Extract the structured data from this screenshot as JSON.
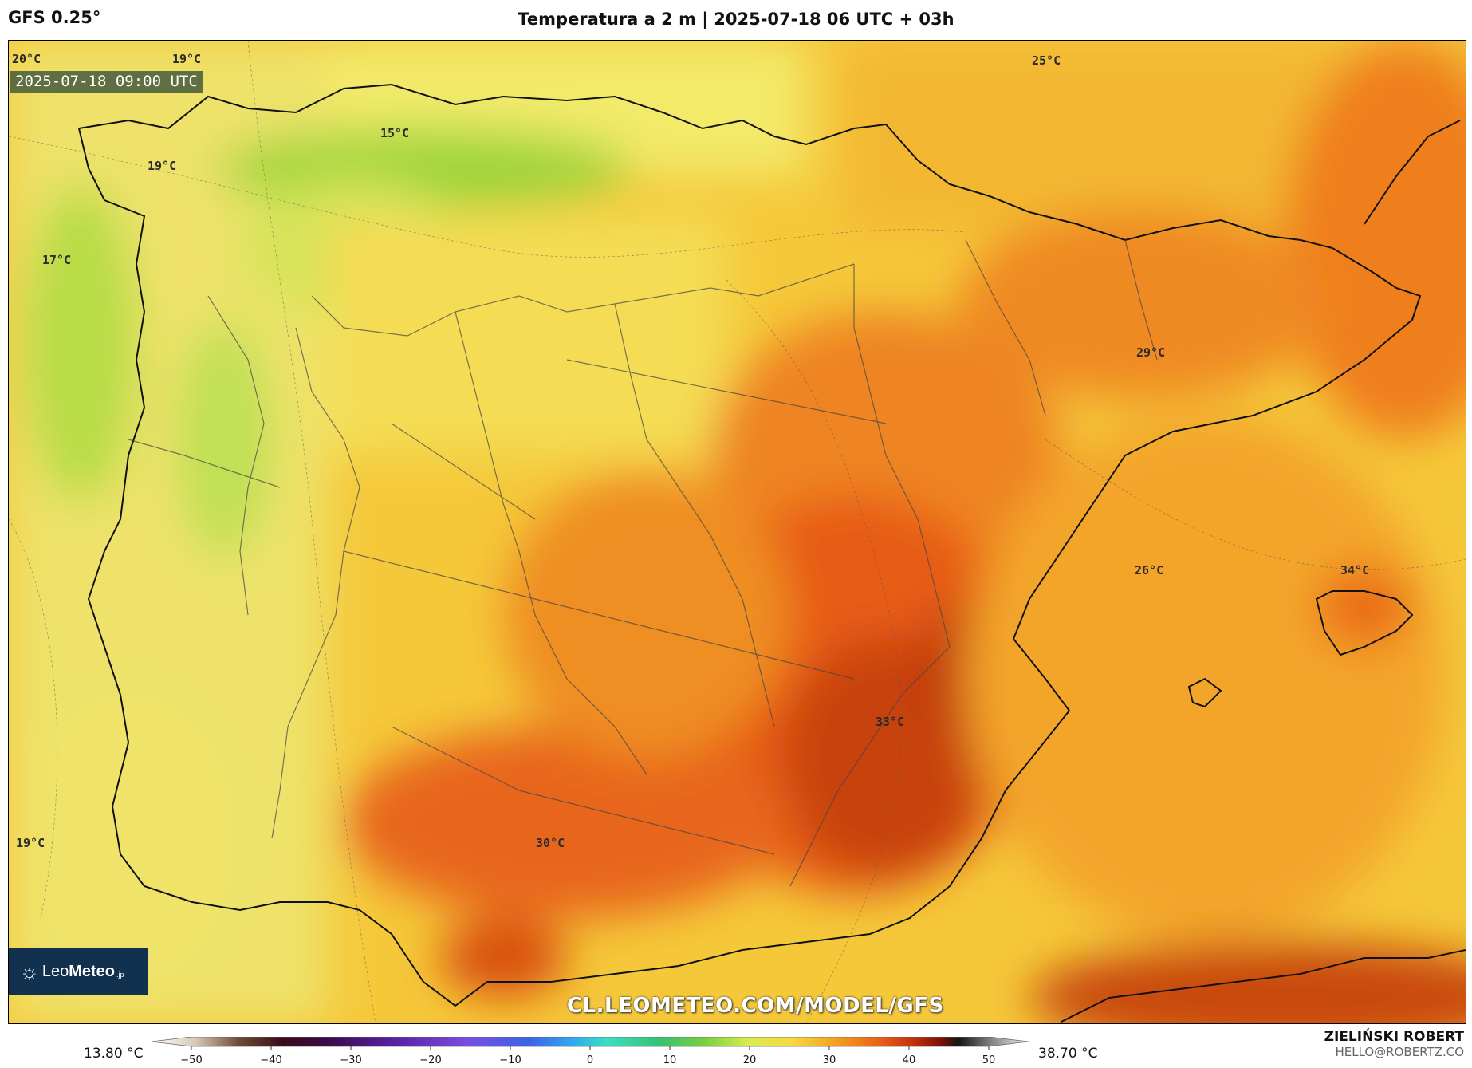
{
  "header": {
    "model": "GFS 0.25°",
    "title": "Temperatura a 2 m | 2025-07-18 06 UTC + 03h"
  },
  "map": {
    "valid_time": "2025-07-18 09:00 UTC",
    "watermark": "CL.LEOMETEO.COM/MODEL/GFS",
    "logo": {
      "text_a": "Leo",
      "text_b": "Meteo",
      "suffix": ".jp"
    },
    "labels": [
      {
        "id": "t20",
        "text": "20°C"
      },
      {
        "id": "t19a",
        "text": "19°C"
      },
      {
        "id": "t19b",
        "text": "19°C"
      },
      {
        "id": "t17",
        "text": "17°C"
      },
      {
        "id": "t15",
        "text": "15°C"
      },
      {
        "id": "t25",
        "text": "25°C"
      },
      {
        "id": "t29",
        "text": "29°C"
      },
      {
        "id": "t26",
        "text": "26°C"
      },
      {
        "id": "t34",
        "text": "34°C"
      },
      {
        "id": "t33",
        "text": "33°C"
      },
      {
        "id": "t30",
        "text": "30°C"
      },
      {
        "id": "t19c",
        "text": "19°C"
      }
    ]
  },
  "colorbar": {
    "min_label": "13.80 °C",
    "max_label": "38.70 °C",
    "ticks": [
      "−50",
      "−40",
      "−30",
      "−20",
      "−10",
      "0",
      "10",
      "20",
      "30",
      "40",
      "50"
    ],
    "range": [
      -50,
      50
    ]
  },
  "credit": {
    "name": "ZIELIŃSKI ROBERT",
    "email": "HELLO@ROBERTZ.CO"
  }
}
